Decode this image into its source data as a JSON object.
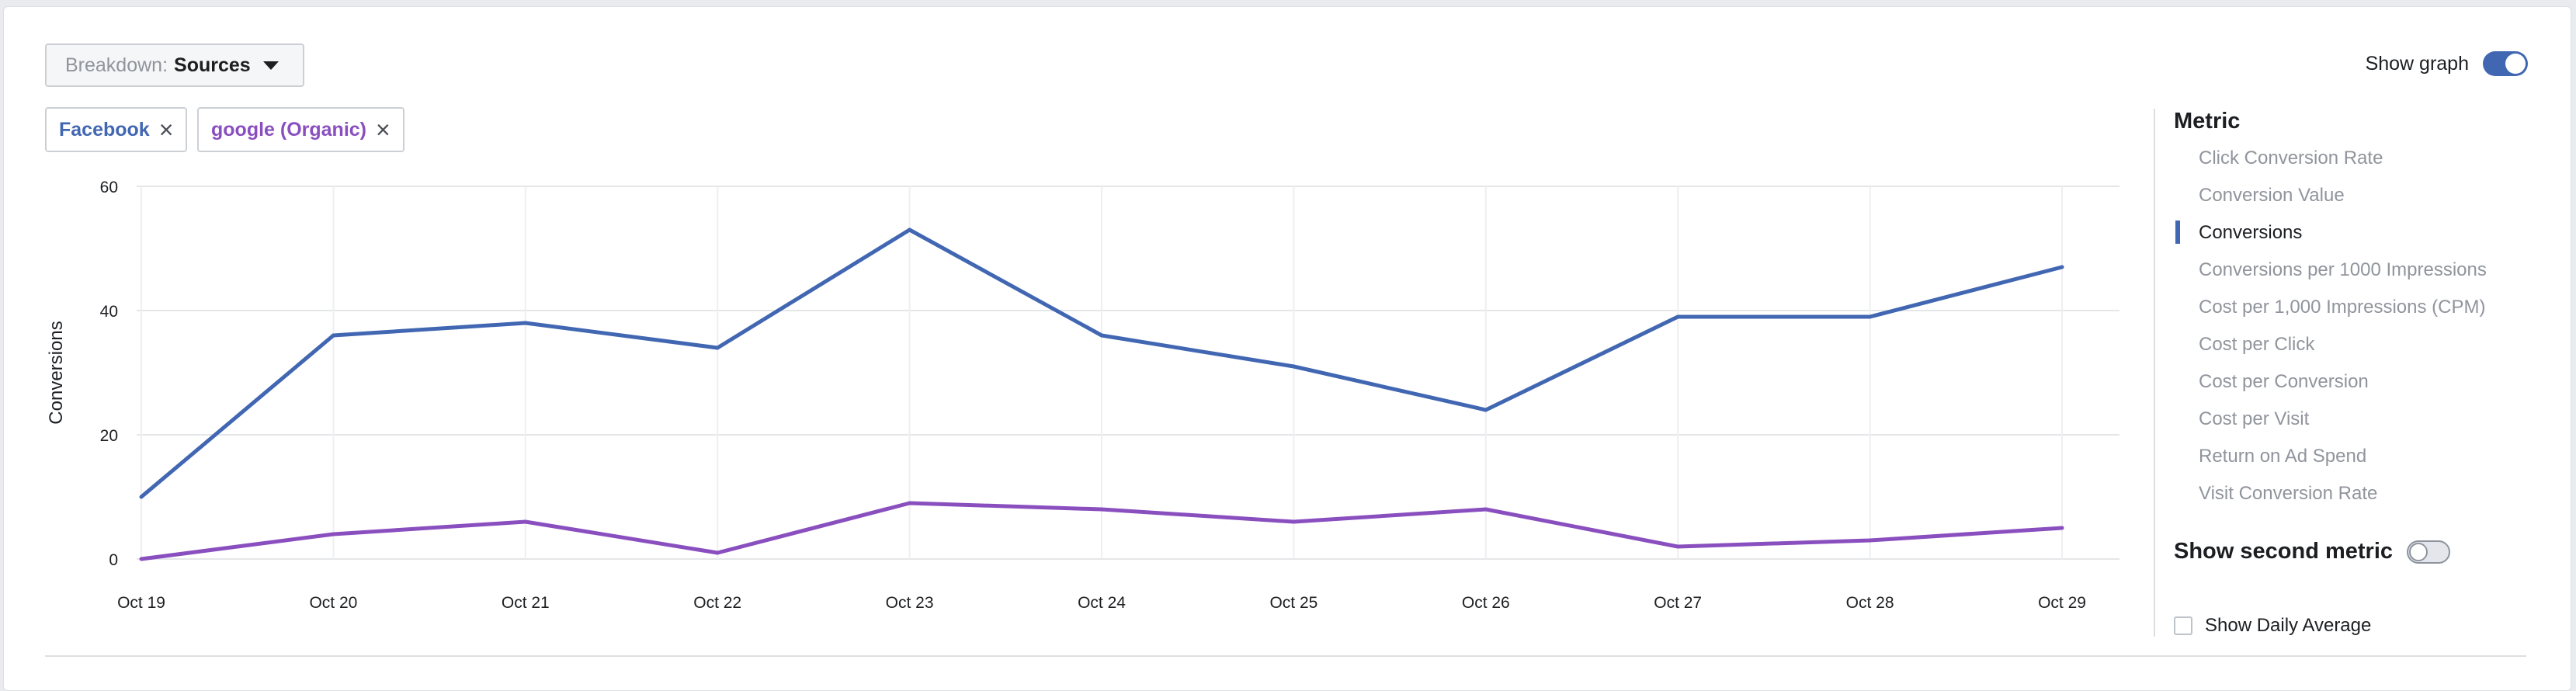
{
  "toolbar": {
    "breakdown_label": "Breakdown:",
    "breakdown_value": "Sources",
    "show_graph_label": "Show graph",
    "show_graph_on": true
  },
  "filters": [
    {
      "label": "Facebook",
      "color": "#4267b2"
    },
    {
      "label": "google (Organic)",
      "color": "#8a4fbf"
    }
  ],
  "side_panel": {
    "title": "Metric",
    "metrics": [
      {
        "label": "Click Conversion Rate",
        "active": false
      },
      {
        "label": "Conversion Value",
        "active": false
      },
      {
        "label": "Conversions",
        "active": true
      },
      {
        "label": "Conversions per 1000 Impressions",
        "active": false
      },
      {
        "label": "Cost per 1,000 Impressions (CPM)",
        "active": false
      },
      {
        "label": "Cost per Click",
        "active": false
      },
      {
        "label": "Cost per Conversion",
        "active": false
      },
      {
        "label": "Cost per Visit",
        "active": false
      },
      {
        "label": "Return on Ad Spend",
        "active": false
      },
      {
        "label": "Visit Conversion Rate",
        "active": false
      }
    ],
    "second_metric_label": "Show second metric",
    "second_metric_on": false,
    "daily_average_label": "Show Daily Average",
    "daily_average_checked": false
  },
  "chart_data": {
    "type": "line",
    "ylabel": "Conversions",
    "xlabel": "",
    "ylim": [
      0,
      60
    ],
    "yticks": [
      0,
      20,
      40,
      60
    ],
    "categories": [
      "Oct 19",
      "Oct 20",
      "Oct 21",
      "Oct 22",
      "Oct 23",
      "Oct 24",
      "Oct 25",
      "Oct 26",
      "Oct 27",
      "Oct 28",
      "Oct 29"
    ],
    "grid": true,
    "series": [
      {
        "name": "Facebook",
        "color": "#4267b2",
        "values": [
          10,
          36,
          38,
          34,
          53,
          36,
          31,
          24,
          39,
          39,
          47
        ]
      },
      {
        "name": "google (Organic)",
        "color": "#8a4fbf",
        "values": [
          0,
          4,
          6,
          1,
          9,
          8,
          6,
          8,
          2,
          3,
          5
        ]
      }
    ]
  }
}
